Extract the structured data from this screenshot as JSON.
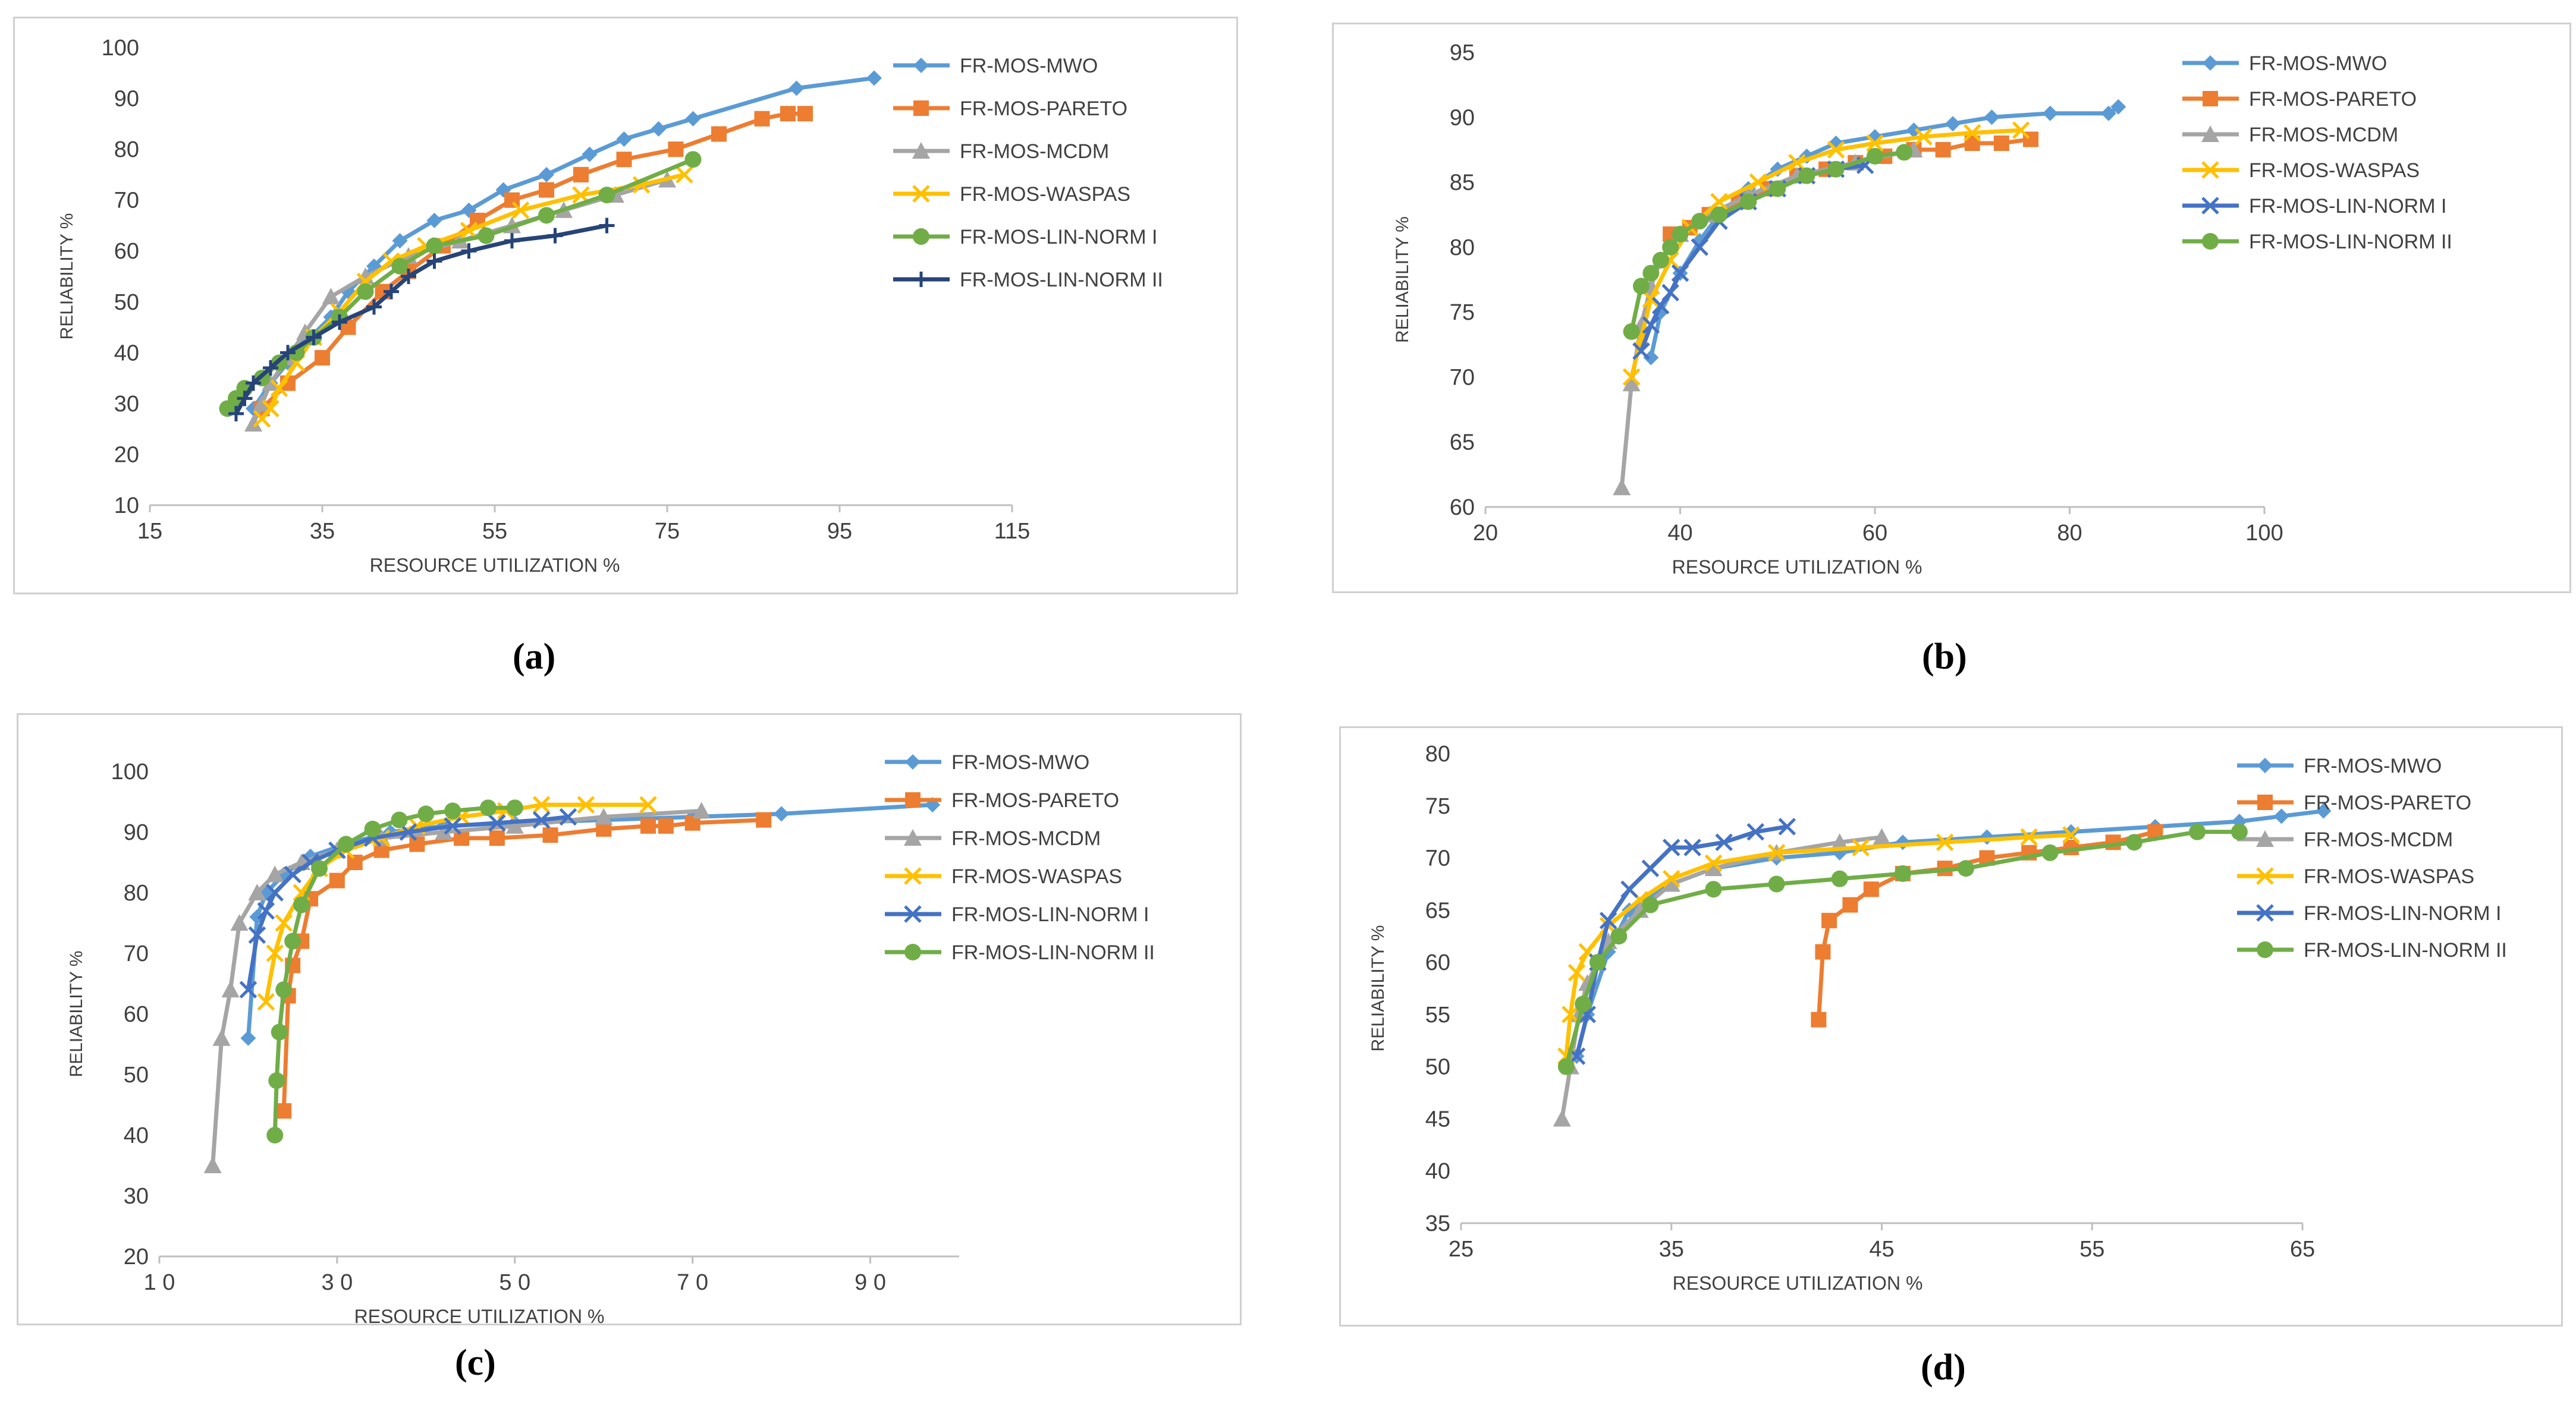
{
  "colors": {
    "FR-MOS-MWO": "#5b9bd5",
    "FR-MOS-PARETO": "#ed7d31",
    "FR-MOS-MCDM": "#a5a5a5",
    "FR-MOS-WASPAS": "#ffc000",
    "FR-MOS-LIN-NORM I": "#4472c4",
    "FR-MOS-LIN-NORM II": "#70ad47",
    "dark": "#264478"
  },
  "chart_data": [
    {
      "id": "a",
      "caption": "(a)",
      "type": "line",
      "xlabel": "RESOURCE UTILIZATION %",
      "ylabel": "RELIABILITY %",
      "xlim": [
        15,
        115
      ],
      "xticks": [
        15,
        35,
        55,
        75,
        95,
        115
      ],
      "ylim": [
        10,
        100
      ],
      "yticks": [
        10,
        20,
        30,
        40,
        50,
        60,
        70,
        80,
        90,
        100
      ],
      "series": [
        {
          "name": "FR-MOS-MWO",
          "color": "#5b9bd5",
          "marker": "diamond",
          "x": [
            27,
            29,
            31,
            33,
            36,
            38,
            41,
            44,
            48,
            52,
            56,
            61,
            66,
            70,
            74,
            78,
            90,
            99
          ],
          "y": [
            29,
            34,
            38,
            42,
            47,
            52,
            57,
            62,
            66,
            68,
            72,
            75,
            79,
            82,
            84,
            86,
            92,
            94
          ]
        },
        {
          "name": "FR-MOS-PARETO",
          "color": "#ed7d31",
          "marker": "square",
          "x": [
            28,
            31,
            35,
            38,
            42,
            45,
            49,
            53,
            57,
            61,
            65,
            70,
            76,
            81,
            86,
            89,
            91
          ],
          "y": [
            29,
            34,
            39,
            45,
            52,
            56,
            61,
            66,
            70,
            72,
            75,
            78,
            80,
            83,
            86,
            87,
            87
          ]
        },
        {
          "name": "FR-MOS-MCDM",
          "color": "#a5a5a5",
          "marker": "triangle",
          "x": [
            27,
            28,
            29,
            31,
            33,
            36,
            40,
            45,
            51,
            57,
            63,
            69,
            75
          ],
          "y": [
            26,
            30,
            34,
            39,
            44,
            51,
            55,
            59,
            62,
            65,
            68,
            71,
            74
          ]
        },
        {
          "name": "FR-MOS-WASPAS",
          "color": "#ffc000",
          "marker": "x",
          "x": [
            28,
            29,
            30,
            32,
            34,
            37,
            40,
            43,
            47,
            52,
            58,
            65,
            72,
            77
          ],
          "y": [
            27,
            29,
            33,
            38,
            43,
            48,
            54,
            58,
            61,
            64,
            68,
            71,
            73,
            75
          ]
        },
        {
          "name": "FR-MOS-LIN-NORM I",
          "color": "#70ad47",
          "marker": "circle",
          "x": [
            24,
            25,
            26,
            28,
            30,
            32,
            34,
            37,
            40,
            44,
            48,
            54,
            61,
            68,
            78
          ],
          "y": [
            29,
            31,
            33,
            35,
            38,
            40,
            43,
            47,
            52,
            57,
            61,
            63,
            67,
            71,
            78
          ]
        },
        {
          "name": "FR-MOS-LIN-NORM II",
          "color": "#264478",
          "marker": "plus",
          "x": [
            25,
            26,
            27,
            29,
            31,
            34,
            37,
            41,
            43,
            45,
            48,
            52,
            57,
            62,
            68
          ],
          "y": [
            28,
            31,
            34,
            37,
            40,
            43,
            46,
            49,
            52,
            55,
            58,
            60,
            62,
            63,
            65
          ]
        }
      ]
    },
    {
      "id": "b",
      "caption": "(b)",
      "type": "line",
      "xlabel": "RESOURCE UTILIZATION %",
      "ylabel": "RELIABILITY %",
      "xlim": [
        20,
        100
      ],
      "xticks": [
        20,
        40,
        60,
        80,
        100
      ],
      "ylim": [
        60,
        95
      ],
      "yticks": [
        60,
        65,
        70,
        75,
        80,
        85,
        90,
        95
      ],
      "series": [
        {
          "name": "FR-MOS-MWO",
          "color": "#5b9bd5",
          "marker": "diamond",
          "x": [
            37,
            38,
            40,
            42,
            44,
            47,
            50,
            53,
            56,
            60,
            64,
            68,
            72,
            78,
            84,
            85
          ],
          "y": [
            71.5,
            75,
            78,
            80.5,
            82.5,
            84.5,
            86,
            87,
            88,
            88.5,
            89,
            89.5,
            90,
            90.3,
            90.3,
            90.8
          ]
        },
        {
          "name": "FR-MOS-PARETO",
          "color": "#ed7d31",
          "marker": "square",
          "x": [
            39,
            41,
            43,
            46,
            49,
            52,
            55,
            58,
            61,
            64,
            67,
            70,
            73,
            76
          ],
          "y": [
            81,
            81.5,
            82.5,
            83.5,
            84.5,
            85.5,
            86,
            86.5,
            87,
            87.5,
            87.5,
            88,
            88,
            88.3
          ]
        },
        {
          "name": "FR-MOS-MCDM",
          "color": "#a5a5a5",
          "marker": "triangle",
          "x": [
            34,
            35,
            36,
            37,
            38,
            40,
            43,
            47,
            52,
            58,
            64
          ],
          "y": [
            61.5,
            69.5,
            74,
            77,
            79,
            81,
            82.5,
            84,
            85.5,
            86.5,
            87.5
          ]
        },
        {
          "name": "FR-MOS-WASPAS",
          "color": "#ffc000",
          "marker": "x",
          "x": [
            35,
            36,
            37,
            39,
            41,
            44,
            48,
            52,
            56,
            60,
            65,
            70,
            75
          ],
          "y": [
            70,
            73,
            76,
            79,
            81.5,
            83.5,
            85,
            86.5,
            87.5,
            88,
            88.5,
            88.8,
            89
          ]
        },
        {
          "name": "FR-MOS-LIN-NORM I",
          "color": "#4472c4",
          "marker": "x",
          "x": [
            36,
            37,
            38,
            39,
            40,
            42,
            44,
            47,
            50,
            53,
            56,
            59
          ],
          "y": [
            72,
            74,
            75.5,
            76.5,
            78,
            80,
            82,
            83.5,
            84.5,
            85.5,
            86,
            86.3
          ]
        },
        {
          "name": "FR-MOS-LIN-NORM II",
          "color": "#70ad47",
          "marker": "circle",
          "x": [
            35,
            36,
            37,
            38,
            39,
            40,
            42,
            44,
            47,
            50,
            53,
            56,
            60,
            63
          ],
          "y": [
            73.5,
            77,
            78,
            79,
            80,
            81,
            82,
            82.5,
            83.5,
            84.5,
            85.5,
            86,
            87,
            87.3
          ]
        }
      ]
    },
    {
      "id": "c",
      "caption": "(c)",
      "type": "line",
      "xlabel": "RESOURCE UTILIZATION %",
      "ylabel": "RELIABILITY %",
      "xlim": [
        10,
        100
      ],
      "xticks": [
        10,
        30,
        50,
        70,
        90
      ],
      "xticklabels": [
        "1 0",
        "3 0",
        "5 0",
        "7 0",
        "9 0"
      ],
      "ylim": [
        20,
        100
      ],
      "yticks": [
        20,
        30,
        40,
        50,
        60,
        70,
        80,
        90,
        100
      ],
      "series": [
        {
          "name": "FR-MOS-MWO",
          "color": "#5b9bd5",
          "marker": "diamond",
          "x": [
            20,
            21,
            22,
            24,
            27,
            31,
            36,
            42,
            50,
            60,
            70,
            80,
            97
          ],
          "y": [
            56,
            76,
            80,
            83,
            86,
            88,
            90,
            91,
            91.5,
            92,
            92.5,
            93,
            94.5
          ]
        },
        {
          "name": "FR-MOS-PARETO",
          "color": "#ed7d31",
          "marker": "square",
          "x": [
            24,
            24.5,
            25,
            26,
            27,
            30,
            32,
            35,
            39,
            44,
            48,
            54,
            60,
            65,
            67,
            70,
            78
          ],
          "y": [
            44,
            63,
            68,
            72,
            79,
            82,
            85,
            87,
            88,
            89,
            89,
            89.5,
            90.5,
            91,
            91,
            91.5,
            92
          ]
        },
        {
          "name": "FR-MOS-MCDM",
          "color": "#a5a5a5",
          "marker": "triangle",
          "x": [
            16,
            17,
            18,
            19,
            21,
            23,
            26,
            30,
            35,
            42,
            50,
            60,
            71
          ],
          "y": [
            35,
            56,
            64,
            75,
            80,
            83,
            85,
            87,
            89,
            90,
            91,
            92.5,
            93.5
          ]
        },
        {
          "name": "FR-MOS-WASPAS",
          "color": "#ffc000",
          "marker": "x",
          "x": [
            22,
            23,
            24,
            26,
            28,
            31,
            35,
            39,
            44,
            49,
            53,
            58,
            65
          ],
          "y": [
            62,
            70,
            75,
            80,
            84,
            87,
            89,
            91,
            92.5,
            93.5,
            94.5,
            94.5,
            94.5
          ]
        },
        {
          "name": "FR-MOS-LIN-NORM I",
          "color": "#4472c4",
          "marker": "x",
          "x": [
            20,
            21,
            22,
            23,
            25,
            27,
            30,
            34,
            38,
            43,
            48,
            53,
            56
          ],
          "y": [
            64,
            73,
            77,
            80,
            83,
            85,
            87,
            89,
            90,
            91,
            91.5,
            92,
            92.5
          ]
        },
        {
          "name": "FR-MOS-LIN-NORM II",
          "color": "#70ad47",
          "marker": "circle",
          "x": [
            23,
            23.2,
            23.5,
            24,
            25,
            26,
            28,
            31,
            34,
            37,
            40,
            43,
            47,
            50
          ],
          "y": [
            40,
            49,
            57,
            64,
            72,
            78,
            84,
            88,
            90.5,
            92,
            93,
            93.5,
            94,
            94
          ]
        }
      ]
    },
    {
      "id": "d",
      "caption": "(d)",
      "type": "line",
      "xlabel": "RESOURCE UTILIZATION %",
      "ylabel": "RELIABILITY %",
      "xlim": [
        25,
        65
      ],
      "xticks": [
        25,
        35,
        45,
        55,
        65
      ],
      "ylim": [
        35,
        80
      ],
      "yticks": [
        35,
        40,
        45,
        50,
        55,
        60,
        65,
        70,
        75,
        80
      ],
      "series": [
        {
          "name": "FR-MOS-MWO",
          "color": "#5b9bd5",
          "marker": "diamond",
          "x": [
            30.5,
            31,
            32,
            33,
            35,
            37,
            40,
            43,
            46,
            50,
            54,
            58,
            62,
            64,
            66
          ],
          "y": [
            51,
            55,
            61,
            65,
            67.5,
            69,
            70,
            70.5,
            71.5,
            72,
            72.5,
            73,
            73.5,
            74,
            74.5
          ]
        },
        {
          "name": "FR-MOS-PARETO",
          "color": "#ed7d31",
          "marker": "square",
          "x": [
            42,
            42.2,
            42.5,
            43.5,
            44.5,
            46,
            48,
            50,
            52,
            54,
            56,
            58
          ],
          "y": [
            54.5,
            61,
            64,
            65.5,
            67,
            68.5,
            69,
            70,
            70.5,
            71,
            71.5,
            72.5
          ]
        },
        {
          "name": "FR-MOS-MCDM",
          "color": "#a5a5a5",
          "marker": "triangle",
          "x": [
            29.8,
            30.2,
            30.6,
            31,
            32,
            33.5,
            35,
            37,
            40,
            43,
            45
          ],
          "y": [
            45,
            50,
            55,
            58,
            62,
            65,
            67.5,
            69,
            70.5,
            71.5,
            72
          ]
        },
        {
          "name": "FR-MOS-WASPAS",
          "color": "#ffc000",
          "marker": "x",
          "x": [
            30,
            30.2,
            30.5,
            31,
            32,
            33.5,
            35,
            37,
            40,
            44,
            48,
            52,
            54
          ],
          "y": [
            51,
            55,
            59,
            61,
            63.5,
            66,
            68,
            69.5,
            70.5,
            71,
            71.5,
            72,
            72.2
          ]
        },
        {
          "name": "FR-MOS-LIN-NORM I",
          "color": "#4472c4",
          "marker": "x",
          "x": [
            30.5,
            31,
            31.5,
            32,
            33,
            34,
            35,
            36,
            37.5,
            39,
            40.5
          ],
          "y": [
            51,
            55,
            60,
            64,
            67,
            69,
            71,
            71,
            71.5,
            72.5,
            73
          ]
        },
        {
          "name": "FR-MOS-LIN-NORM II",
          "color": "#70ad47",
          "marker": "circle",
          "x": [
            30,
            30.8,
            31.5,
            32.5,
            34,
            37,
            40,
            43,
            46,
            49,
            53,
            57,
            60,
            62
          ],
          "y": [
            50,
            56,
            60,
            62.5,
            65.5,
            67,
            67.5,
            68,
            68.5,
            69,
            70.5,
            71.5,
            72.5,
            72.5
          ]
        }
      ]
    }
  ]
}
